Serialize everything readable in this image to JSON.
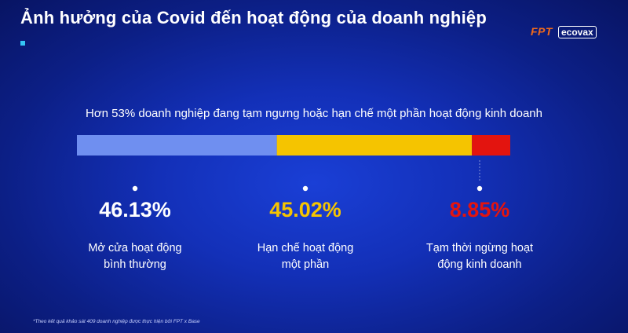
{
  "title": "Ảnh hưởng của Covid đến hoạt động của doanh nghiệp",
  "logo": {
    "brand": "FPT",
    "product": "ecovax"
  },
  "footnote": "*Theo kết quả khảo sát 409 doanh nghiệp được thực hiện bởi FPT x Base",
  "chart_data": {
    "type": "bar",
    "orientation": "horizontal-stacked",
    "title": "Hơn 53% doanh nghiệp đang tạm ngưng hoặc hạn chế một phần hoạt động kinh doanh",
    "unit": "%",
    "series": [
      {
        "name": "Mở cửa hoạt động bình thường",
        "label_lines": [
          "Mở cửa hoạt động",
          "bình thường"
        ],
        "value": 46.13,
        "value_label": "46.13%",
        "color": "#6f8ff0",
        "value_color": "#ffffff"
      },
      {
        "name": "Hạn chế hoạt động một phần",
        "label_lines": [
          "Hạn chế hoạt động",
          "một phần"
        ],
        "value": 45.02,
        "value_label": "45.02%",
        "color": "#f5c400",
        "value_color": "#f5c400"
      },
      {
        "name": "Tạm thời ngừng hoạt động kinh doanh",
        "label_lines": [
          "Tạm thời ngừng hoạt",
          "động kinh doanh"
        ],
        "value": 8.85,
        "value_label": "8.85%",
        "color": "#e3140f",
        "value_color": "#e3140f"
      }
    ],
    "xlim": [
      0,
      100
    ],
    "grid": false,
    "legend": "none"
  }
}
